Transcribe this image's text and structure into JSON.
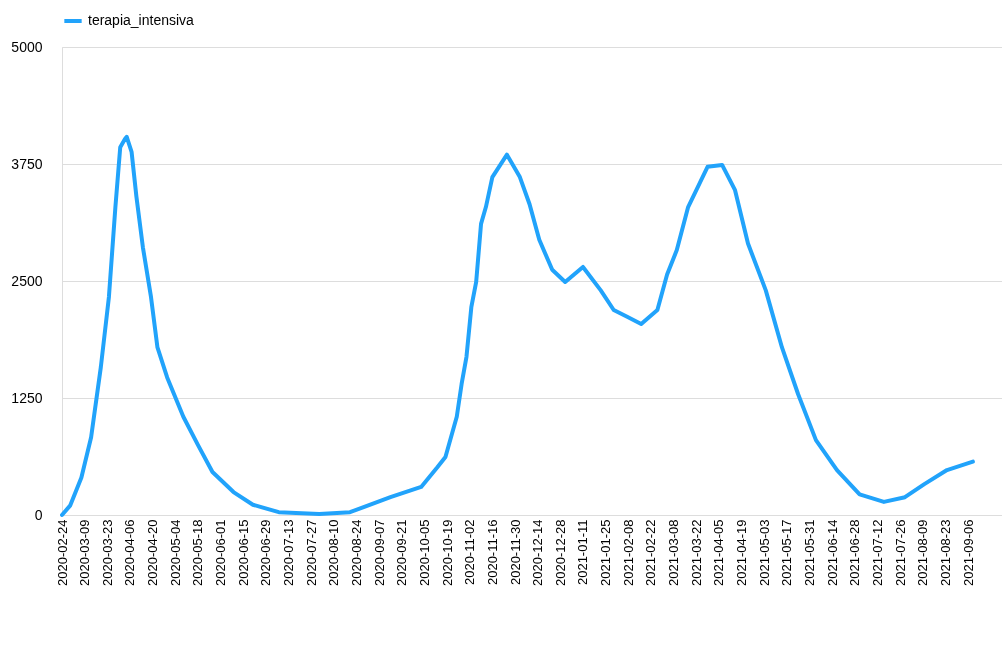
{
  "chart_data": {
    "type": "line",
    "legend": "top",
    "grid": "y",
    "x": [
      "2020-02-24",
      "2020-02-29",
      "2020-03-07",
      "2020-03-13",
      "2020-03-19",
      "2020-03-24",
      "2020-03-28",
      "2020-03-31",
      "2020-04-03",
      "2020-04-04",
      "2020-04-07",
      "2020-04-10",
      "2020-04-14",
      "2020-04-19",
      "2020-04-23",
      "2020-04-29",
      "2020-05-09",
      "2020-05-18",
      "2020-05-27",
      "2020-06-09",
      "2020-06-21",
      "2020-07-07",
      "2020-08-01",
      "2020-08-20",
      "2020-09-14",
      "2020-10-03",
      "2020-10-13",
      "2020-10-18",
      "2020-10-25",
      "2020-10-28",
      "2020-10-31",
      "2020-11-03",
      "2020-11-06",
      "2020-11-09",
      "2020-11-12",
      "2020-11-16",
      "2020-11-25",
      "2020-12-03",
      "2020-12-09",
      "2020-12-15",
      "2020-12-23",
      "2020-12-31",
      "2021-01-11",
      "2021-01-22",
      "2021-01-30",
      "2021-02-07",
      "2021-02-16",
      "2021-02-26",
      "2021-03-04",
      "2021-03-10",
      "2021-03-17",
      "2021-03-29",
      "2021-04-07",
      "2021-04-15",
      "2021-04-23",
      "2021-05-04",
      "2021-05-14",
      "2021-05-24",
      "2021-06-04",
      "2021-06-17",
      "2021-07-01",
      "2021-07-16",
      "2021-07-29",
      "2021-08-10",
      "2021-08-24",
      "2021-09-09"
    ],
    "series": [
      {
        "name": "terapia_intensiva",
        "color": "#21a3fb",
        "values": [
          0,
          100,
          400,
          830,
          1580,
          2330,
          3290,
          3930,
          4020,
          4040,
          3880,
          3400,
          2860,
          2330,
          1790,
          1470,
          1050,
          750,
          460,
          245,
          110,
          30,
          10,
          30,
          190,
          300,
          510,
          620,
          1050,
          1400,
          1690,
          2220,
          2490,
          3110,
          3290,
          3610,
          3850,
          3610,
          3320,
          2940,
          2620,
          2490,
          2650,
          2400,
          2190,
          2120,
          2040,
          2190,
          2570,
          2830,
          3290,
          3720,
          3740,
          3470,
          2900,
          2400,
          1790,
          1290,
          800,
          480,
          220,
          140,
          190,
          330,
          480,
          570
        ]
      }
    ],
    "xlim": [
      "2020-02-24",
      "2021-09-27"
    ],
    "xticks": [
      "2020-02-24",
      "2020-03-09",
      "2020-03-23",
      "2020-04-06",
      "2020-04-20",
      "2020-05-04",
      "2020-05-18",
      "2020-06-01",
      "2020-06-15",
      "2020-06-29",
      "2020-07-13",
      "2020-07-27",
      "2020-08-10",
      "2020-08-24",
      "2020-09-07",
      "2020-09-21",
      "2020-10-05",
      "2020-10-19",
      "2020-11-02",
      "2020-11-16",
      "2020-11-30",
      "2020-12-14",
      "2020-12-28",
      "2021-01-11",
      "2021-01-25",
      "2021-02-08",
      "2021-02-22",
      "2021-03-08",
      "2021-03-22",
      "2021-04-05",
      "2021-04-19",
      "2021-05-03",
      "2021-05-17",
      "2021-05-31",
      "2021-06-14",
      "2021-06-28",
      "2021-07-12",
      "2021-07-26",
      "2021-08-09",
      "2021-08-23",
      "2021-09-06"
    ],
    "ylim": [
      0,
      5000
    ],
    "yticks": [
      0,
      1250,
      2500,
      3750,
      5000
    ]
  }
}
